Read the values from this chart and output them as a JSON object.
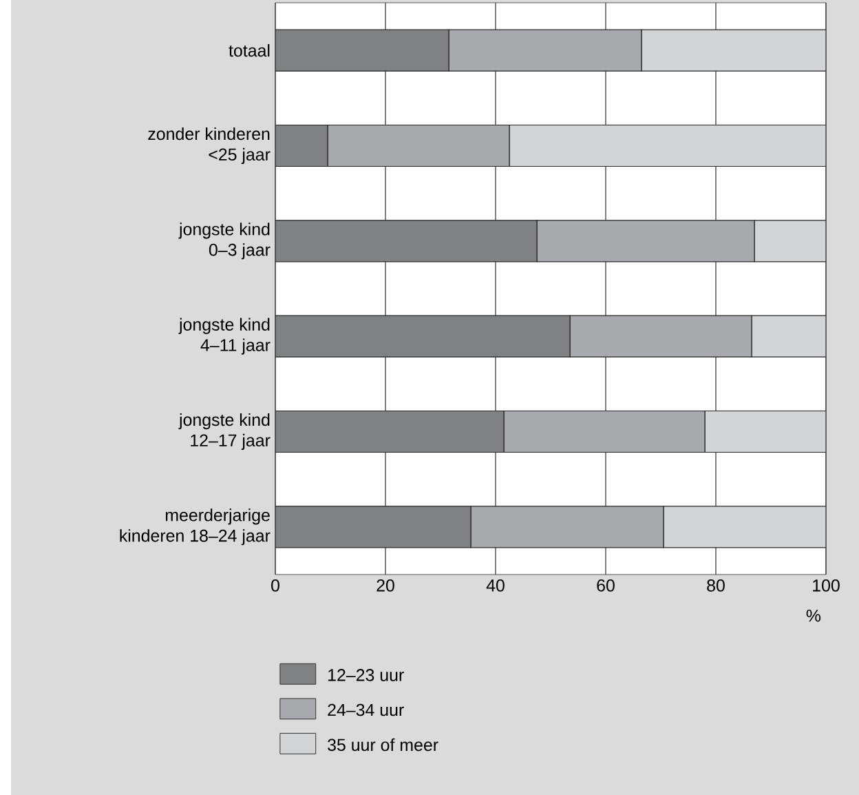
{
  "chart_data": {
    "type": "bar",
    "orientation": "horizontal",
    "stacked": true,
    "xlabel": "%",
    "categories": [
      "totaal",
      "zonder kinderen\n<25 jaar",
      "jongste kind\n0–3 jaar",
      "jongste kind\n4–11 jaar",
      "jongste kind\n12–17 jaar",
      "meerderjarige\nkinderen 18–24 jaar"
    ],
    "series": [
      {
        "name": "12–23 uur",
        "color": "#808183",
        "values": [
          31.5,
          9.5,
          47.5,
          53.5,
          41.5,
          35.5
        ]
      },
      {
        "name": "24–34 uur",
        "color": "#a8a9ac",
        "values": [
          35,
          33,
          39.5,
          33,
          36.5,
          35
        ]
      },
      {
        "name": "35 uur of meer",
        "color": "#d3d4d6",
        "values": [
          33.5,
          57.5,
          13,
          13.5,
          22,
          29.5
        ]
      }
    ],
    "xlim": [
      0,
      100
    ],
    "xticks": [
      0,
      20,
      40,
      60,
      80,
      100
    ],
    "grid": "x",
    "legend": "bottom"
  }
}
